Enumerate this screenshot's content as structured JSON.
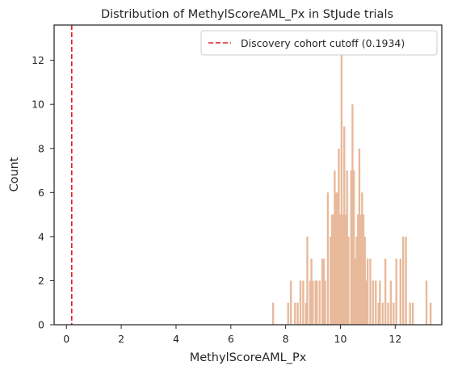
{
  "chart_data": {
    "type": "bar",
    "title": "Distribution of MethylScoreAML_Px in StJude trials",
    "xlabel": "MethylScoreAML_Px",
    "ylabel": "Count",
    "xlim": [
      -0.45,
      13.7
    ],
    "ylim": [
      0,
      13.6
    ],
    "xticks": [
      0,
      2,
      4,
      6,
      8,
      10,
      12
    ],
    "yticks": [
      0,
      2,
      4,
      6,
      8,
      10,
      12
    ],
    "grid": false,
    "legend_position": "top-right",
    "bar_color": "#e8b99a",
    "bin_width": 0.0875,
    "bins": {
      "x": [
        7.55,
        8.1,
        8.2,
        8.35,
        8.45,
        8.55,
        8.65,
        8.75,
        8.8,
        8.9,
        8.95,
        9.0,
        9.1,
        9.15,
        9.25,
        9.35,
        9.4,
        9.45,
        9.55,
        9.65,
        9.7,
        9.75,
        9.8,
        9.85,
        9.9,
        9.95,
        10.0,
        10.05,
        10.1,
        10.15,
        10.2,
        10.25,
        10.3,
        10.4,
        10.45,
        10.5,
        10.55,
        10.6,
        10.65,
        10.7,
        10.75,
        10.8,
        10.85,
        10.9,
        10.95,
        11.0,
        11.1,
        11.2,
        11.3,
        11.4,
        11.45,
        11.55,
        11.65,
        11.75,
        11.85,
        11.95,
        12.05,
        12.2,
        12.3,
        12.4,
        12.55,
        12.65,
        13.15,
        13.3
      ],
      "counts": [
        1,
        1,
        2,
        1,
        1,
        2,
        2,
        1,
        4,
        2,
        3,
        2,
        2,
        2,
        2,
        3,
        3,
        2,
        6,
        4,
        5,
        5,
        7,
        6,
        6,
        8,
        5,
        12.5,
        5,
        9,
        5,
        7,
        4,
        7,
        10,
        7,
        3,
        4,
        5,
        8,
        5,
        6,
        5,
        4,
        2,
        3,
        3,
        2,
        2,
        1,
        2,
        1,
        3,
        1,
        2,
        1,
        3,
        3,
        4,
        4,
        1,
        1,
        2,
        1
      ]
    },
    "cutoff": {
      "value": 0.1934,
      "color": "#e31a1c",
      "label": "Discovery cohort cutoff (0.1934)"
    }
  }
}
